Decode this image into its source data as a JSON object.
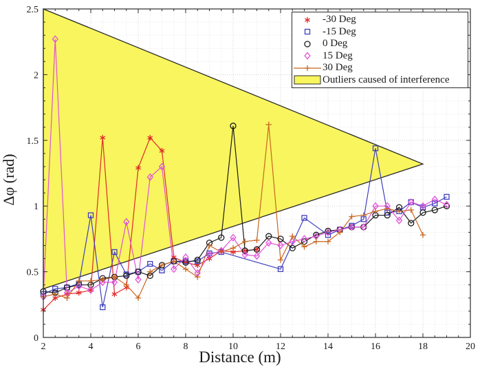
{
  "chart_data": {
    "type": "line",
    "title": "",
    "xlabel": "Distance (m)",
    "ylabel": "Δφ (rad)",
    "xlim": [
      2,
      20
    ],
    "ylim": [
      0,
      2.5
    ],
    "xticks": [
      2,
      4,
      6,
      8,
      10,
      12,
      14,
      16,
      18,
      20
    ],
    "xtick_labels": [
      "2",
      "4",
      "6",
      "8",
      "10",
      "12",
      "14",
      "16",
      "18",
      "20"
    ],
    "yticks": [
      0,
      0.5,
      1,
      1.5,
      2,
      2.5
    ],
    "ytick_labels": [
      "0",
      "0.5",
      "1",
      "1.5",
      "2",
      "2.5"
    ],
    "grid": "major and minor dotted, on",
    "legend_position": "northeast",
    "colors": {
      "axis": "#2a2a2a",
      "major_grid": "#cfcfcf",
      "minor_grid": "#e8e8e8",
      "background": "#ffffff"
    },
    "outlier_region": {
      "label": "Outliers caused of interference",
      "fill": "#f8f55e",
      "edge": "#2a2a2a",
      "vertices": [
        [
          2,
          2.5
        ],
        [
          2,
          0.37
        ],
        [
          18,
          1.32
        ]
      ]
    },
    "series": [
      {
        "name": "-30 Deg",
        "color": "#e02828",
        "marker": "asterisk",
        "points": [
          [
            2,
            0.21
          ],
          [
            2.5,
            0.3
          ],
          [
            3,
            0.33
          ],
          [
            3.5,
            0.34
          ],
          [
            4,
            0.36
          ],
          [
            4.5,
            1.52
          ],
          [
            5,
            0.33
          ],
          [
            5.5,
            0.38
          ],
          [
            6,
            1.29
          ],
          [
            6.5,
            1.52
          ],
          [
            7,
            1.42
          ],
          [
            7.5,
            0.61
          ],
          [
            8,
            0.57
          ],
          [
            8.5,
            0.55
          ],
          [
            9,
            0.6
          ],
          [
            9.5,
            0.66
          ],
          [
            10,
            0.65
          ],
          [
            10.5,
            0.66
          ],
          [
            11,
            0.67
          ]
        ]
      },
      {
        "name": "-15 Deg",
        "color": "#3f3fbf",
        "marker": "square",
        "points": [
          [
            2,
            0.33
          ],
          [
            2.5,
            0.37
          ],
          [
            3,
            0.38
          ],
          [
            3.5,
            0.41
          ],
          [
            4,
            0.93
          ],
          [
            4.5,
            0.23
          ],
          [
            5,
            0.65
          ],
          [
            5.5,
            0.48
          ],
          [
            6,
            0.5
          ],
          [
            6.5,
            0.56
          ],
          [
            7,
            0.51
          ],
          [
            7.5,
            0.58
          ],
          [
            8,
            0.58
          ],
          [
            8.5,
            0.58
          ],
          [
            9,
            0.64
          ],
          [
            9.5,
            0.65
          ],
          [
            12,
            0.52
          ],
          [
            13,
            0.91
          ],
          [
            14,
            0.78
          ],
          [
            14.5,
            0.82
          ],
          [
            15,
            0.85
          ],
          [
            15.5,
            0.9
          ],
          [
            16,
            1.44
          ],
          [
            16.5,
            0.95
          ],
          [
            17,
            0.96
          ],
          [
            17.5,
            1.03
          ],
          [
            18,
            0.99
          ],
          [
            18.5,
            1.02
          ],
          [
            19,
            1.07
          ]
        ]
      },
      {
        "name": "0 Deg",
        "color": "#1a1a1a",
        "marker": "circle",
        "points": [
          [
            2,
            0.35
          ],
          [
            2.5,
            0.34
          ],
          [
            3,
            0.38
          ],
          [
            3.5,
            0.4
          ],
          [
            4,
            0.4
          ],
          [
            4.5,
            0.45
          ],
          [
            5,
            0.46
          ],
          [
            5.5,
            0.47
          ],
          [
            6,
            0.5
          ],
          [
            6.5,
            0.47
          ],
          [
            7,
            0.55
          ],
          [
            7.5,
            0.58
          ],
          [
            8,
            0.57
          ],
          [
            8.5,
            0.59
          ],
          [
            9,
            0.72
          ],
          [
            9.5,
            0.76
          ],
          [
            10,
            1.61
          ],
          [
            10.5,
            0.66
          ],
          [
            11,
            0.67
          ],
          [
            11.5,
            0.77
          ],
          [
            12,
            0.75
          ],
          [
            12.5,
            0.68
          ],
          [
            13,
            0.73
          ],
          [
            13.5,
            0.78
          ],
          [
            14,
            0.81
          ],
          [
            14.5,
            0.82
          ],
          [
            15,
            0.84
          ],
          [
            15.5,
            0.84
          ],
          [
            16,
            0.93
          ],
          [
            16.5,
            0.93
          ],
          [
            17,
            0.99
          ],
          [
            17.5,
            0.87
          ],
          [
            18,
            0.95
          ],
          [
            18.5,
            0.97
          ],
          [
            19,
            1.0
          ]
        ]
      },
      {
        "name": "15 Deg",
        "color": "#e052d8",
        "marker": "diamond",
        "points": [
          [
            2,
            0.31
          ],
          [
            2.5,
            2.27
          ],
          [
            3,
            0.34
          ],
          [
            3.5,
            0.39
          ],
          [
            4,
            0.36
          ],
          [
            4.5,
            0.42
          ],
          [
            5,
            0.42
          ],
          [
            5.5,
            0.88
          ],
          [
            6,
            0.44
          ],
          [
            6.5,
            1.22
          ],
          [
            7,
            1.3
          ],
          [
            7.5,
            0.52
          ],
          [
            8,
            0.61
          ],
          [
            8.5,
            0.49
          ],
          [
            9,
            0.63
          ],
          [
            9.5,
            0.66
          ],
          [
            10,
            0.76
          ],
          [
            10.5,
            0.63
          ],
          [
            11,
            0.62
          ],
          [
            11.5,
            0.72
          ],
          [
            12,
            0.7
          ],
          [
            12.5,
            0.73
          ],
          [
            13,
            0.75
          ],
          [
            13.5,
            0.77
          ],
          [
            14,
            0.8
          ],
          [
            14.5,
            0.82
          ],
          [
            15,
            0.84
          ],
          [
            15.5,
            0.84
          ],
          [
            16,
            1.0
          ],
          [
            16.5,
            1.0
          ],
          [
            17,
            0.89
          ],
          [
            17.5,
            1.03
          ],
          [
            18,
            1.0
          ],
          [
            18.5,
            1.05
          ],
          [
            19,
            1.01
          ]
        ]
      },
      {
        "name": "30 Deg",
        "color": "#c9661f",
        "marker": "plus",
        "points": [
          [
            2,
            0.31
          ],
          [
            2.5,
            0.33
          ],
          [
            3,
            0.3
          ],
          [
            3.5,
            0.43
          ],
          [
            4,
            0.43
          ],
          [
            4.5,
            0.44
          ],
          [
            5,
            0.46
          ],
          [
            5.5,
            0.4
          ],
          [
            6,
            0.3
          ],
          [
            6.5,
            0.5
          ],
          [
            7,
            0.55
          ],
          [
            7.5,
            0.58
          ],
          [
            8,
            0.52
          ],
          [
            8.5,
            0.46
          ],
          [
            9,
            0.7
          ],
          [
            9.5,
            0.65
          ],
          [
            10,
            0.68
          ],
          [
            10.5,
            0.73
          ],
          [
            11,
            0.74
          ],
          [
            11.5,
            1.62
          ],
          [
            12,
            0.59
          ],
          [
            12.5,
            0.77
          ],
          [
            13,
            0.69
          ],
          [
            13.5,
            0.73
          ],
          [
            14,
            0.73
          ],
          [
            14.5,
            0.8
          ],
          [
            15,
            0.92
          ],
          [
            15.5,
            0.93
          ],
          [
            16,
            0.96
          ],
          [
            16.5,
            0.98
          ],
          [
            17,
            0.96
          ],
          [
            17.5,
            0.97
          ],
          [
            18,
            0.78
          ]
        ]
      }
    ],
    "legend_entries": [
      "-30 Deg",
      "-15 Deg",
      "0 Deg",
      "15 Deg",
      "30 Deg",
      "Outliers caused of interference"
    ]
  }
}
